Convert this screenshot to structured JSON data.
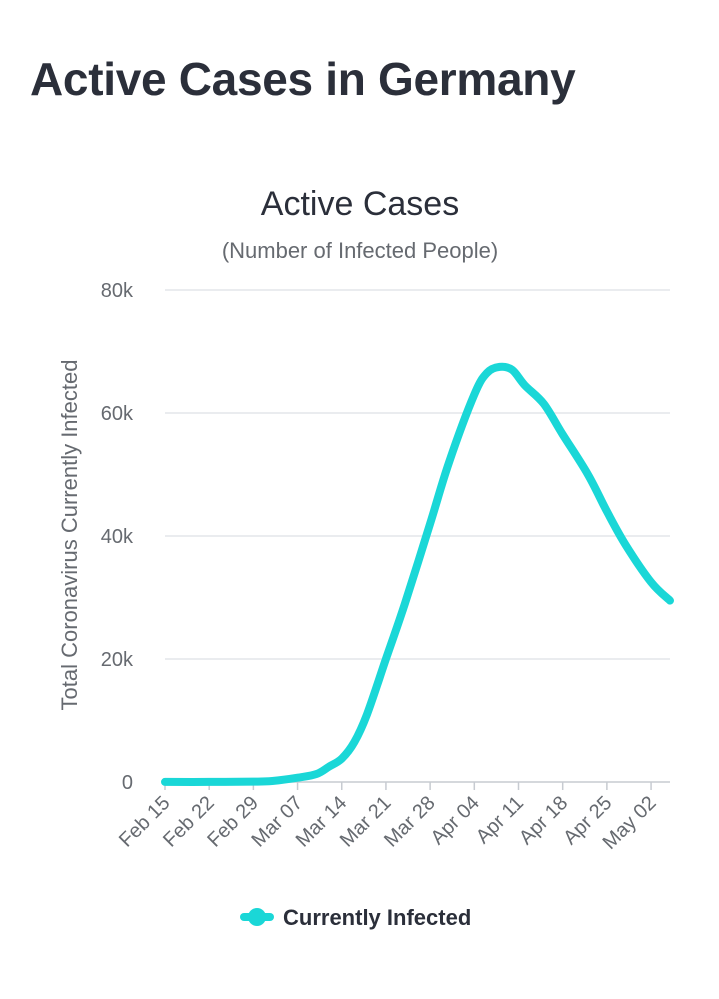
{
  "page": {
    "title": "Active Cases in Germany"
  },
  "chart_data": {
    "type": "line",
    "title": "Active Cases",
    "subtitle": "(Number of Infected People)",
    "xlabel": "",
    "ylabel": "Total Coronavirus Currently Infected",
    "ylim": [
      0,
      80000
    ],
    "yticks": [
      0,
      20000,
      40000,
      60000,
      80000
    ],
    "ytick_labels": [
      "0",
      "20k",
      "40k",
      "60k",
      "80k"
    ],
    "xlim": [
      "2020-02-15",
      "2020-05-05"
    ],
    "xtick_dates": [
      "2020-02-15",
      "2020-02-22",
      "2020-02-29",
      "2020-03-07",
      "2020-03-14",
      "2020-03-21",
      "2020-03-28",
      "2020-04-04",
      "2020-04-11",
      "2020-04-18",
      "2020-04-25",
      "2020-05-02"
    ],
    "xtick_labels": [
      "Feb 15",
      "Feb 22",
      "Feb 29",
      "Mar 07",
      "Mar 14",
      "Mar 21",
      "Mar 28",
      "Apr 04",
      "Apr 11",
      "Apr 18",
      "Apr 25",
      "May 02"
    ],
    "grid": true,
    "legend_position": "bottom",
    "series": [
      {
        "name": "Currently Infected",
        "color": "#1ad7d7",
        "points": [
          {
            "x": "2020-02-15",
            "y": 16
          },
          {
            "x": "2020-02-22",
            "y": 14
          },
          {
            "x": "2020-02-29",
            "y": 60
          },
          {
            "x": "2020-03-03",
            "y": 170
          },
          {
            "x": "2020-03-07",
            "y": 700
          },
          {
            "x": "2020-03-10",
            "y": 1300
          },
          {
            "x": "2020-03-12",
            "y": 2500
          },
          {
            "x": "2020-03-14",
            "y": 3800
          },
          {
            "x": "2020-03-16",
            "y": 6500
          },
          {
            "x": "2020-03-18",
            "y": 11000
          },
          {
            "x": "2020-03-21",
            "y": 20000
          },
          {
            "x": "2020-03-24",
            "y": 29000
          },
          {
            "x": "2020-03-28",
            "y": 42000
          },
          {
            "x": "2020-03-31",
            "y": 52000
          },
          {
            "x": "2020-04-04",
            "y": 63000
          },
          {
            "x": "2020-04-06",
            "y": 66500
          },
          {
            "x": "2020-04-08",
            "y": 67500
          },
          {
            "x": "2020-04-10",
            "y": 67000
          },
          {
            "x": "2020-04-12",
            "y": 64500
          },
          {
            "x": "2020-04-15",
            "y": 61500
          },
          {
            "x": "2020-04-18",
            "y": 56500
          },
          {
            "x": "2020-04-22",
            "y": 50000
          },
          {
            "x": "2020-04-25",
            "y": 44000
          },
          {
            "x": "2020-04-28",
            "y": 38500
          },
          {
            "x": "2020-05-02",
            "y": 32500
          },
          {
            "x": "2020-05-05",
            "y": 29500
          }
        ]
      }
    ]
  }
}
